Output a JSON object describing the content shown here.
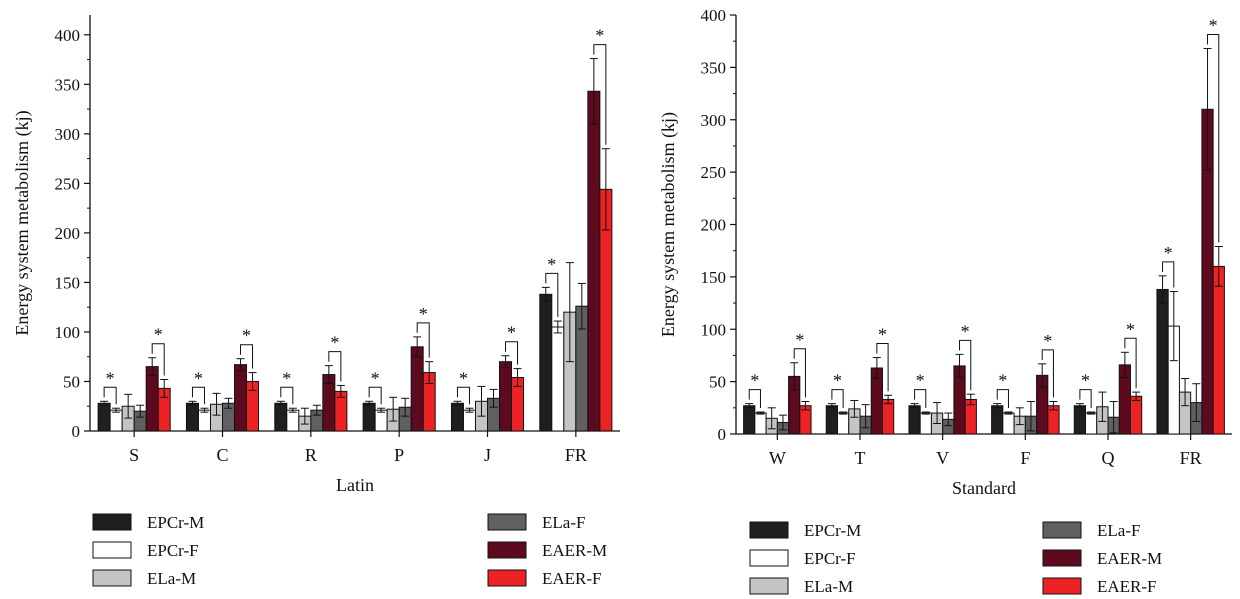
{
  "colors": {
    "EPCr-M": "#1f1f1f",
    "EPCr-F": "#ffffff",
    "ELa-M": "#c4c4c4",
    "ELa-F": "#606060",
    "EAER-M": "#5e0a1e",
    "EAER-F": "#ed2224"
  },
  "legend_order": [
    [
      "EPCr-M",
      "ELa-F"
    ],
    [
      "EPCr-F",
      "EAER-M"
    ],
    [
      "ELa-M",
      "EAER-F"
    ]
  ],
  "chart_data": [
    {
      "type": "bar",
      "xlabel": "Latin",
      "ylabel": "Energy system metabolism (kj)",
      "ylim": [
        0,
        420
      ],
      "yticks": [
        0,
        50,
        100,
        150,
        200,
        250,
        300,
        350,
        400
      ],
      "categories": [
        "S",
        "C",
        "R",
        "P",
        "J",
        "FR"
      ],
      "series": [
        {
          "name": "EPCr-M",
          "values": [
            28,
            28,
            28,
            28,
            28,
            138
          ],
          "errors": [
            2,
            2,
            2,
            2,
            2,
            7
          ]
        },
        {
          "name": "EPCr-F",
          "values": [
            21,
            21,
            21,
            21,
            21,
            105
          ],
          "errors": [
            2,
            2,
            2,
            2,
            2,
            6
          ]
        },
        {
          "name": "ELa-M",
          "values": [
            25,
            27,
            15,
            22,
            30,
            120
          ],
          "errors": [
            12,
            11,
            8,
            12,
            15,
            50
          ]
        },
        {
          "name": "ELa-F",
          "values": [
            20,
            28,
            21,
            24,
            33,
            126
          ],
          "errors": [
            6,
            5,
            5,
            9,
            9,
            23
          ]
        },
        {
          "name": "EAER-M",
          "values": [
            65,
            67,
            57,
            85,
            70,
            343
          ],
          "errors": [
            9,
            6,
            9,
            10,
            6,
            33
          ]
        },
        {
          "name": "EAER-F",
          "values": [
            43,
            50,
            40,
            59,
            54,
            244
          ],
          "errors": [
            9,
            9,
            6,
            11,
            9,
            41
          ]
        }
      ],
      "annotations": {
        "significance": "*",
        "pairs": [
          [
            "EPCr-M",
            "EPCr-F"
          ],
          [
            "EAER-M",
            "EAER-F"
          ]
        ]
      }
    },
    {
      "type": "bar",
      "xlabel": "Standard",
      "ylabel": "Energy system metabolism (kj)",
      "ylim": [
        0,
        400
      ],
      "yticks": [
        0,
        50,
        100,
        150,
        200,
        250,
        300,
        350,
        400
      ],
      "categories": [
        "W",
        "T",
        "V",
        "F",
        "Q",
        "FR"
      ],
      "series": [
        {
          "name": "EPCr-M",
          "values": [
            27,
            27,
            27,
            27,
            27,
            138
          ],
          "errors": [
            2,
            2,
            2,
            2,
            2,
            13
          ]
        },
        {
          "name": "EPCr-F",
          "values": [
            20,
            20,
            20,
            20,
            20,
            103
          ],
          "errors": [
            1,
            1,
            1,
            1,
            1,
            33
          ]
        },
        {
          "name": "ELa-M",
          "values": [
            15,
            24,
            20,
            17,
            26,
            40
          ],
          "errors": [
            10,
            8,
            10,
            8,
            14,
            13
          ]
        },
        {
          "name": "ELa-F",
          "values": [
            11,
            17,
            14,
            17,
            16,
            30
          ],
          "errors": [
            7,
            11,
            6,
            14,
            15,
            18
          ]
        },
        {
          "name": "EAER-M",
          "values": [
            55,
            63,
            65,
            56,
            66,
            310
          ],
          "errors": [
            13,
            10,
            11,
            11,
            12,
            58
          ]
        },
        {
          "name": "EAER-F",
          "values": [
            27,
            33,
            33,
            27,
            36,
            160
          ],
          "errors": [
            4,
            4,
            5,
            4,
            4,
            19
          ]
        }
      ],
      "annotations": {
        "significance": "*",
        "pairs": [
          [
            "EPCr-M",
            "EPCr-F"
          ],
          [
            "EAER-M",
            "EAER-F"
          ]
        ]
      }
    }
  ]
}
